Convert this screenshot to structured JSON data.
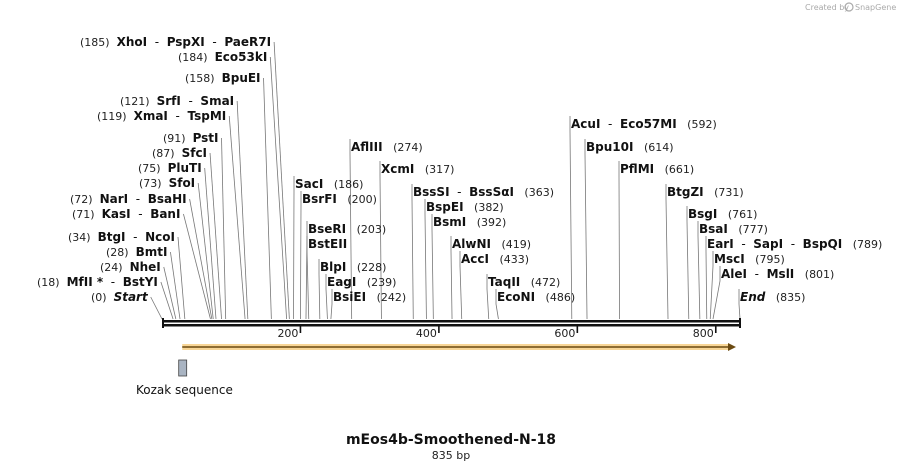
{
  "credit": {
    "prefix": "Created by",
    "brand": "SnapGene"
  },
  "map": {
    "title": "mEos4b-Smoothened-N-18",
    "length_label": "835 bp",
    "seq_length": 835,
    "ticks": [
      200,
      400,
      600,
      800
    ]
  },
  "features": [
    {
      "name": "Kozak sequence",
      "start": 27,
      "end": 36,
      "color": "#a9b4c2"
    }
  ],
  "orf": {
    "start": 35,
    "end": 835,
    "color": "#f3b441"
  },
  "sites": [
    {
      "pos": 185,
      "label_pos": "(185)",
      "names": [
        "XhoI",
        "PspXI",
        "PaeR7I"
      ],
      "side": "left",
      "anchor": 184
    },
    {
      "pos": 184,
      "label_pos": "(184)",
      "names": [
        "Eco53kI"
      ],
      "side": "left",
      "anchor": 180
    },
    {
      "pos": 158,
      "label_pos": "(158)",
      "names": [
        "BpuEI"
      ],
      "side": "left",
      "anchor": 158
    },
    {
      "pos": 121,
      "label_pos": "(121)",
      "names": [
        "SrfI",
        "SmaI"
      ],
      "side": "left",
      "anchor": 124
    },
    {
      "pos": 119,
      "label_pos": "(119)",
      "names": [
        "XmaI",
        "TspMI"
      ],
      "side": "left",
      "anchor": 120
    },
    {
      "pos": 91,
      "label_pos": "(91)",
      "names": [
        "PstI"
      ],
      "side": "left",
      "anchor": 92
    },
    {
      "pos": 87,
      "label_pos": "(87)",
      "names": [
        "SfcI"
      ],
      "side": "left",
      "anchor": 86
    },
    {
      "pos": 75,
      "label_pos": "(75)",
      "names": [
        "PluTI"
      ],
      "side": "left",
      "anchor": 78
    },
    {
      "pos": 73,
      "label_pos": "(73)",
      "names": [
        "SfoI"
      ],
      "side": "left",
      "anchor": 74
    },
    {
      "pos": 72,
      "label_pos": "(72)",
      "names": [
        "NarI",
        "BsaHI"
      ],
      "side": "left",
      "anchor": 72
    },
    {
      "pos": 71,
      "label_pos": "(71)",
      "names": [
        "KasI",
        "BanI"
      ],
      "side": "left",
      "anchor": 70
    },
    {
      "pos": 34,
      "label_pos": "(34)",
      "names": [
        "BtgI",
        "NcoI"
      ],
      "side": "left",
      "anchor": 33
    },
    {
      "pos": 28,
      "label_pos": "(28)",
      "names": [
        "BmtI"
      ],
      "side": "left",
      "anchor": 26
    },
    {
      "pos": 24,
      "label_pos": "(24)",
      "names": [
        "NheI"
      ],
      "side": "left",
      "anchor": 20
    },
    {
      "pos": 18,
      "label_pos": "(18)",
      "names": [
        "MfII *",
        "BstYI"
      ],
      "side": "left",
      "anchor": 16
    },
    {
      "pos": 0,
      "label_pos": "(0)",
      "names": [
        "Start"
      ],
      "side": "left",
      "anchor": 0,
      "italic": true
    },
    {
      "pos": 274,
      "label_pos": "(274)",
      "names": [
        "AflIII"
      ],
      "side": "right",
      "anchor": 274
    },
    {
      "pos": 317,
      "label_pos": "(317)",
      "names": [
        "XcmI"
      ],
      "side": "right",
      "anchor": 317
    },
    {
      "pos": 186,
      "label_pos": "(186)",
      "names": [
        "SacI"
      ],
      "side": "right",
      "anchor": 190
    },
    {
      "pos": 200,
      "label_pos": "(200)",
      "names": [
        "BsrFI"
      ],
      "side": "right",
      "anchor": 200
    },
    {
      "pos": 363,
      "label_pos": "(363)",
      "names": [
        "BssSI",
        "BssSαI"
      ],
      "side": "right",
      "anchor": 363
    },
    {
      "pos": 382,
      "label_pos": "(382)",
      "names": [
        "BspEI"
      ],
      "side": "right",
      "anchor": 382
    },
    {
      "pos": 392,
      "label_pos": "(392)",
      "names": [
        "BsmI"
      ],
      "side": "right",
      "anchor": 392
    },
    {
      "pos": 203,
      "label_pos": "(203)",
      "names": [
        "BseRI"
      ],
      "side": "right",
      "anchor": 208
    },
    {
      "pos": 228,
      "label_pos": "(228)",
      "names": [
        "BlpI"
      ],
      "side": "right",
      "anchor": 228
    },
    {
      "pos": 239,
      "label_pos": "(239)",
      "names": [
        "EagI"
      ],
      "side": "right",
      "anchor": 239
    },
    {
      "pos": 242,
      "label_pos": "(242)",
      "names": [
        "BsiEI"
      ],
      "side": "right",
      "anchor": 244
    },
    {
      "pos": 203,
      "label_pos": "",
      "names": [
        "BstEII"
      ],
      "side": "right",
      "anchor": 212
    },
    {
      "pos": 419,
      "label_pos": "(419)",
      "names": [
        "AlwNI"
      ],
      "side": "right",
      "anchor": 419
    },
    {
      "pos": 433,
      "label_pos": "(433)",
      "names": [
        "AccI"
      ],
      "side": "right",
      "anchor": 433
    },
    {
      "pos": 472,
      "label_pos": "(472)",
      "names": [
        "TaqII"
      ],
      "side": "right",
      "anchor": 472
    },
    {
      "pos": 486,
      "label_pos": "(486)",
      "names": [
        "EcoNI"
      ],
      "side": "right",
      "anchor": 486
    },
    {
      "pos": 592,
      "label_pos": "(592)",
      "names": [
        "AcuI",
        "Eco57MI"
      ],
      "side": "right",
      "anchor": 592
    },
    {
      "pos": 614,
      "label_pos": "(614)",
      "names": [
        "Bpu10I"
      ],
      "side": "right",
      "anchor": 614
    },
    {
      "pos": 661,
      "label_pos": "(661)",
      "names": [
        "PflMI"
      ],
      "side": "right",
      "anchor": 661
    },
    {
      "pos": 731,
      "label_pos": "(731)",
      "names": [
        "BtgZI"
      ],
      "side": "right",
      "anchor": 731
    },
    {
      "pos": 761,
      "label_pos": "(761)",
      "names": [
        "BsgI"
      ],
      "side": "right",
      "anchor": 761
    },
    {
      "pos": 777,
      "label_pos": "(777)",
      "names": [
        "BsaI"
      ],
      "side": "right",
      "anchor": 777
    },
    {
      "pos": 789,
      "label_pos": "(789)",
      "names": [
        "EarI",
        "SapI",
        "BspQI"
      ],
      "side": "right",
      "anchor": 787
    },
    {
      "pos": 795,
      "label_pos": "(795)",
      "names": [
        "MscI"
      ],
      "side": "right",
      "anchor": 792
    },
    {
      "pos": 801,
      "label_pos": "(801)",
      "names": [
        "AleI",
        "MslI"
      ],
      "side": "right",
      "anchor": 796
    },
    {
      "pos": 835,
      "label_pos": "(835)",
      "names": [
        "End"
      ],
      "side": "right",
      "anchor": 835,
      "italic": true
    }
  ]
}
